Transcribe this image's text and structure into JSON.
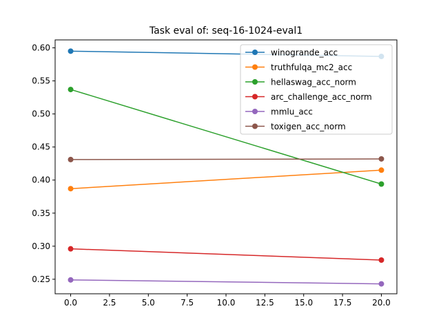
{
  "chart_data": {
    "type": "line",
    "title": "Task eval of: seq-16-1024-eval1",
    "xlabel": "",
    "ylabel": "",
    "x": [
      0,
      20
    ],
    "xlim": [
      -1,
      21
    ],
    "ylim": [
      0.228,
      0.612
    ],
    "xticks": [
      0,
      2.5,
      5,
      7.5,
      10,
      12.5,
      15,
      17.5,
      20
    ],
    "xtick_labels": [
      "0.0",
      "2.5",
      "5.0",
      "7.5",
      "10.0",
      "12.5",
      "15.0",
      "17.5",
      "20.0"
    ],
    "yticks": [
      0.25,
      0.3,
      0.35,
      0.4,
      0.45,
      0.5,
      0.55,
      0.6
    ],
    "ytick_labels": [
      "0.25",
      "0.30",
      "0.35",
      "0.40",
      "0.45",
      "0.50",
      "0.55",
      "0.60"
    ],
    "grid": false,
    "legend_position": "top-right",
    "series": [
      {
        "name": "winogrande_acc",
        "color": "#1f77b4",
        "values": [
          0.595,
          0.587
        ]
      },
      {
        "name": "truthfulqa_mc2_acc",
        "color": "#ff7f0e",
        "values": [
          0.387,
          0.415
        ]
      },
      {
        "name": "hellaswag_acc_norm",
        "color": "#2ca02c",
        "values": [
          0.537,
          0.394
        ]
      },
      {
        "name": "arc_challenge_acc_norm",
        "color": "#d62728",
        "values": [
          0.296,
          0.279
        ]
      },
      {
        "name": "mmlu_acc",
        "color": "#9467bd",
        "values": [
          0.249,
          0.243
        ]
      },
      {
        "name": "toxigen_acc_norm",
        "color": "#8c564b",
        "values": [
          0.431,
          0.432
        ]
      }
    ]
  }
}
